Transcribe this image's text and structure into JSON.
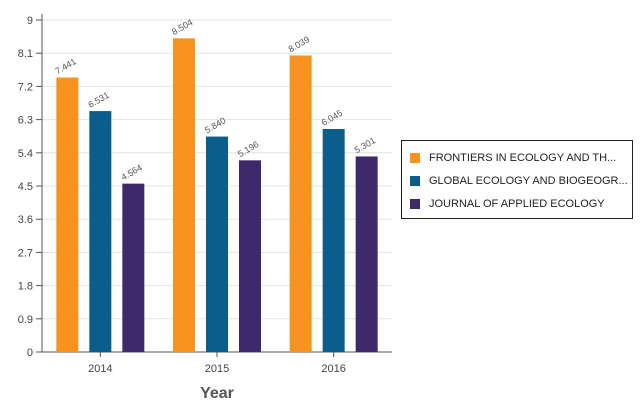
{
  "chart_data": {
    "type": "bar",
    "categories": [
      "2014",
      "2015",
      "2016"
    ],
    "series": [
      {
        "name": "FRONTIERS IN ECOLOGY AND TH...",
        "color": "#f7931e",
        "values": [
          7.441,
          8.504,
          8.039
        ],
        "labels": [
          "7.441",
          "8.504",
          "8.039"
        ]
      },
      {
        "name": "GLOBAL ECOLOGY AND BIOGEOGR...",
        "color": "#0b5e8c",
        "values": [
          6.531,
          5.84,
          6.045
        ],
        "labels": [
          "6.531",
          "5.840",
          "6.045"
        ]
      },
      {
        "name": "JOURNAL OF APPLIED ECOLOGY",
        "color": "#3e2a6b",
        "values": [
          4.564,
          5.196,
          5.301
        ],
        "labels": [
          "4.564",
          "5.196",
          "5.301"
        ]
      }
    ],
    "xlabel": "Year",
    "ylabel": "",
    "ylim": [
      0,
      9
    ],
    "yticks": [
      "0",
      "0.9",
      "1.8",
      "2.7",
      "3.6",
      "4.5",
      "5.4",
      "6.3",
      "7.2",
      "8.1",
      "9"
    ],
    "grid": true,
    "legend_position": "right"
  }
}
